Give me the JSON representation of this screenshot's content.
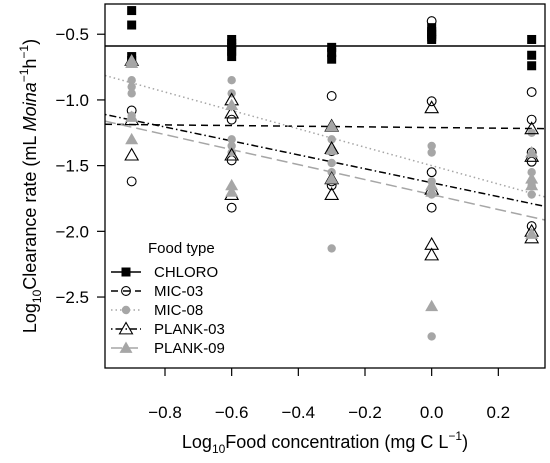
{
  "chart_data": {
    "type": "scatter",
    "xlabel": {
      "base": "Log",
      "sub": "10",
      "rest": "Food concentration (mg C L",
      "sup": "−1",
      "end": ")"
    },
    "ylabel": {
      "base": "Log",
      "sub": "10",
      "rest": "Clearance rate (mL ",
      "italic": "Moina",
      "sup1": "−1",
      "h": "h",
      "sup2": "−1",
      "end": ")"
    },
    "xlim": [
      -0.98,
      0.34
    ],
    "ylim": [
      -3.04,
      -0.27
    ],
    "x_ticks": [
      -0.8,
      -0.6,
      -0.4,
      -0.2,
      0.0,
      0.2
    ],
    "x_tick_labels": [
      "−0.8",
      "−0.6",
      "−0.4",
      "−0.2",
      "0.0",
      "0.2"
    ],
    "y_ticks": [
      -0.5,
      -1.0,
      -1.5,
      -2.0,
      -2.5
    ],
    "y_tick_labels": [
      "−0.5",
      "−1.0",
      "−1.5",
      "−2.0",
      "−2.5"
    ],
    "legend": {
      "title": "Food type",
      "placement": "bottom-left",
      "entries": [
        "CHLORO",
        "MIC-03",
        "MIC-08",
        "PLANK-03",
        "PLANK-09"
      ]
    },
    "series": [
      {
        "name": "CHLORO",
        "color": "#000000",
        "marker": "square-filled",
        "line": {
          "style": "solid",
          "intercept": -0.59,
          "slope": 0.0
        },
        "points": [
          [
            -0.9,
            -0.32
          ],
          [
            -0.9,
            -0.43
          ],
          [
            -0.9,
            -0.67
          ],
          [
            -0.9,
            -0.7
          ],
          [
            -0.6,
            -0.54
          ],
          [
            -0.6,
            -0.57
          ],
          [
            -0.6,
            -0.6
          ],
          [
            -0.6,
            -0.63
          ],
          [
            -0.6,
            -0.67
          ],
          [
            -0.3,
            -0.6
          ],
          [
            -0.3,
            -0.64
          ],
          [
            -0.3,
            -0.69
          ],
          [
            0.0,
            -0.45
          ],
          [
            0.0,
            -0.48
          ],
          [
            0.0,
            -0.5
          ],
          [
            0.0,
            -0.52
          ],
          [
            0.0,
            -0.54
          ],
          [
            0.3,
            -0.54
          ],
          [
            0.3,
            -0.66
          ],
          [
            0.3,
            -0.74
          ]
        ]
      },
      {
        "name": "MIC-03",
        "color": "#000000",
        "marker": "circle-open",
        "line": {
          "style": "dashed",
          "intercept": -1.21,
          "slope": -0.025
        },
        "points": [
          [
            -0.9,
            -1.08
          ],
          [
            -0.9,
            -1.62
          ],
          [
            -0.6,
            -1.15
          ],
          [
            -0.6,
            -1.46
          ],
          [
            -0.6,
            -1.82
          ],
          [
            -0.3,
            -0.97
          ],
          [
            -0.3,
            -1.39
          ],
          [
            -0.3,
            -1.62
          ],
          [
            -0.3,
            -1.65
          ],
          [
            0.0,
            -0.4
          ],
          [
            0.0,
            -1.01
          ],
          [
            0.0,
            -1.55
          ],
          [
            0.0,
            -1.82
          ],
          [
            0.3,
            -0.94
          ],
          [
            0.3,
            -1.15
          ],
          [
            0.3,
            -1.4
          ],
          [
            0.3,
            -1.47
          ],
          [
            0.3,
            -1.96
          ]
        ]
      },
      {
        "name": "MIC-08",
        "color": "#a6a6a6",
        "marker": "diamond-filled",
        "line": {
          "style": "dotted",
          "intercept": -1.5,
          "slope": -0.7
        },
        "points": [
          [
            -0.9,
            -0.85
          ],
          [
            -0.9,
            -0.9
          ],
          [
            -0.9,
            -0.95
          ],
          [
            -0.9,
            -1.12
          ],
          [
            -0.6,
            -0.85
          ],
          [
            -0.6,
            -0.95
          ],
          [
            -0.6,
            -1.3
          ],
          [
            -0.6,
            -1.35
          ],
          [
            -0.6,
            -1.4
          ],
          [
            -0.3,
            -1.3
          ],
          [
            -0.3,
            -1.48
          ],
          [
            -0.3,
            -1.55
          ],
          [
            -0.3,
            -2.13
          ],
          [
            0.0,
            -1.35
          ],
          [
            0.0,
            -1.4
          ],
          [
            0.0,
            -1.62
          ],
          [
            0.0,
            -1.72
          ],
          [
            0.0,
            -2.8
          ],
          [
            0.3,
            -1.25
          ],
          [
            0.3,
            -1.55
          ],
          [
            0.3,
            -1.65
          ],
          [
            0.3,
            -1.72
          ]
        ]
      },
      {
        "name": "PLANK-03",
        "color": "#000000",
        "marker": "triangle-open",
        "line": {
          "style": "dotdash",
          "intercept": -1.63,
          "slope": -0.53
        },
        "points": [
          [
            -0.9,
            -0.7
          ],
          [
            -0.9,
            -1.15
          ],
          [
            -0.9,
            -1.42
          ],
          [
            -0.6,
            -1.0
          ],
          [
            -0.6,
            -1.1
          ],
          [
            -0.6,
            -1.42
          ],
          [
            -0.6,
            -1.72
          ],
          [
            -0.3,
            -1.2
          ],
          [
            -0.3,
            -1.37
          ],
          [
            -0.3,
            -1.6
          ],
          [
            -0.3,
            -1.72
          ],
          [
            0.0,
            -1.06
          ],
          [
            0.0,
            -1.68
          ],
          [
            0.0,
            -2.1
          ],
          [
            0.0,
            -2.18
          ],
          [
            0.3,
            -1.22
          ],
          [
            0.3,
            -1.43
          ],
          [
            0.3,
            -2.0
          ],
          [
            0.3,
            -2.05
          ]
        ]
      },
      {
        "name": "PLANK-09",
        "color": "#a6a6a6",
        "marker": "triangle-filled",
        "line": {
          "style": "longdash",
          "intercept": -1.72,
          "slope": -0.57
        },
        "points": [
          [
            -0.9,
            -0.7
          ],
          [
            -0.9,
            -0.72
          ],
          [
            -0.9,
            -1.13
          ],
          [
            -0.9,
            -1.3
          ],
          [
            -0.6,
            -1.04
          ],
          [
            -0.6,
            -1.65
          ],
          [
            -0.6,
            -1.7
          ],
          [
            -0.3,
            -1.2
          ],
          [
            -0.3,
            -1.38
          ],
          [
            -0.3,
            -1.6
          ],
          [
            0.0,
            -1.65
          ],
          [
            0.0,
            -1.7
          ],
          [
            0.0,
            -2.57
          ],
          [
            0.3,
            -1.4
          ],
          [
            0.3,
            -1.6
          ],
          [
            0.3,
            -1.65
          ],
          [
            0.3,
            -2.02
          ]
        ]
      }
    ]
  }
}
